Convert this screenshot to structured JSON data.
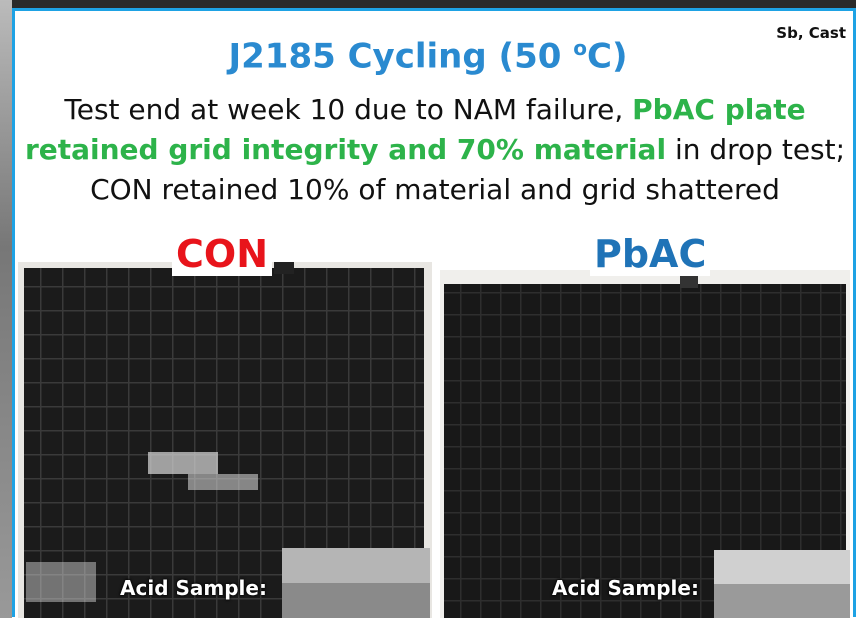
{
  "header": {
    "note": "Sb, Cast",
    "title": {
      "main": "J2185 Cycling (50 ",
      "sup": "o",
      "end": "C)"
    }
  },
  "description": [
    [
      {
        "text": "Test end at week 10 due to NAM failure, ",
        "color": "#111111"
      },
      {
        "text": "PbAC plate",
        "color": "#2db34a"
      }
    ],
    [
      {
        "text": "retained grid integrity and 70% material",
        "color": "#2db34a"
      },
      {
        "text": " in drop test;",
        "color": "#111111"
      }
    ],
    [
      {
        "text": "CON retained 10% of material and grid shattered",
        "color": "#111111"
      }
    ]
  ],
  "panels": [
    {
      "label": "CON",
      "color": "#e8141b",
      "inset": "Acid Sample:"
    },
    {
      "label": "PbAC",
      "color": "#1f73b7",
      "inset": "Acid Sample:"
    }
  ]
}
